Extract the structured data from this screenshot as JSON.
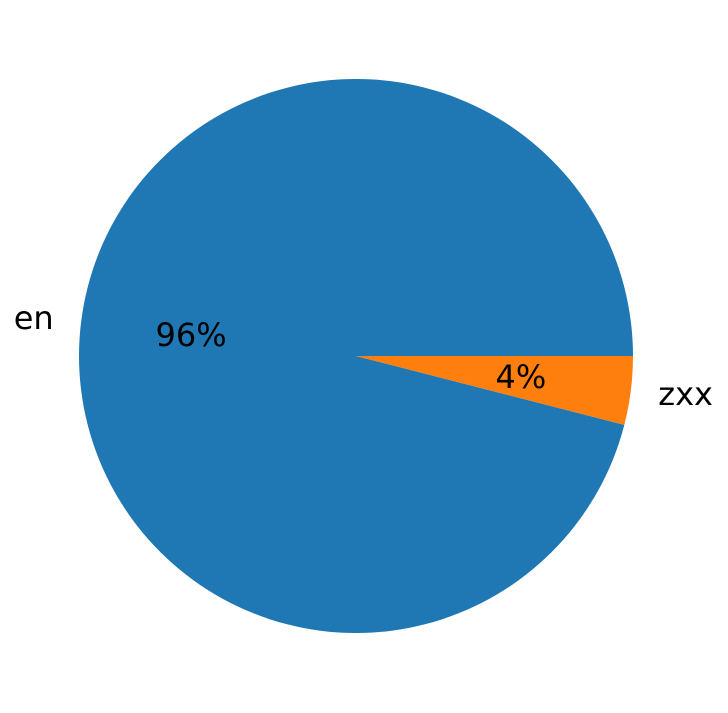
{
  "chart_data": {
    "type": "pie",
    "title": "",
    "categories": [
      "en",
      "zxx"
    ],
    "values": [
      96,
      4
    ],
    "percent_labels": [
      "96%",
      "4%"
    ],
    "colors": [
      "#1f77b4",
      "#ff7f0e"
    ],
    "start_angle_deg": 0,
    "direction": "counterclockwise",
    "legend": "none"
  }
}
